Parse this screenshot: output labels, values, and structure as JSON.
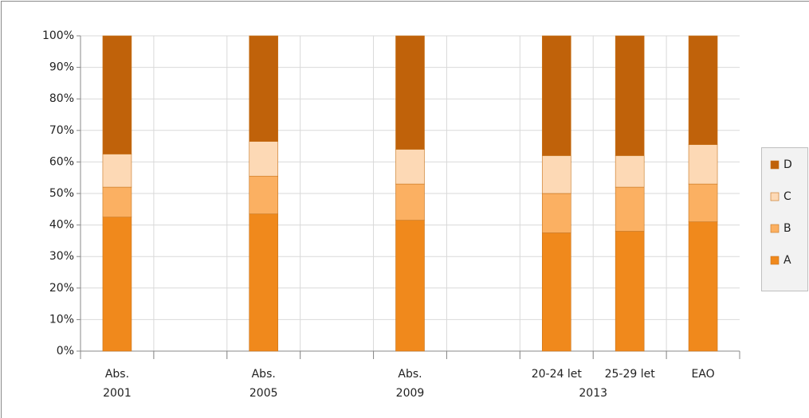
{
  "chart_data": {
    "type": "stacked_bar",
    "categories": [
      "Abs.",
      null,
      "Abs.",
      null,
      "Abs.",
      null,
      "20-24 let",
      "25-29 let",
      "EAO"
    ],
    "category_groups": [
      {
        "name": "2001",
        "from": 0,
        "to": 0
      },
      {
        "name": "2005",
        "from": 2,
        "to": 2
      },
      {
        "name": "2009",
        "from": 4,
        "to": 4
      },
      {
        "name": "2013",
        "from": 6,
        "to": 7
      }
    ],
    "series": [
      {
        "name": "A",
        "color": "#f0891c",
        "values": [
          42.5,
          null,
          43.5,
          null,
          41.5,
          null,
          37.5,
          38,
          41
        ]
      },
      {
        "name": "B",
        "color": "#fbb062",
        "values": [
          9.5,
          null,
          12,
          null,
          11.5,
          null,
          12.5,
          14,
          12
        ]
      },
      {
        "name": "C",
        "color": "#fdd9b5",
        "values": [
          10.5,
          null,
          11,
          null,
          11,
          null,
          12,
          10,
          12.5
        ]
      },
      {
        "name": "D",
        "color": "#c0620a",
        "values": [
          37.5,
          null,
          33.5,
          null,
          36,
          null,
          38,
          38,
          34.5
        ]
      }
    ],
    "ylim": [
      0,
      100
    ],
    "yticks": [
      {
        "value": 0,
        "label": "0%"
      },
      {
        "value": 10,
        "label": "10%"
      },
      {
        "value": 20,
        "label": "20%"
      },
      {
        "value": 30,
        "label": "30%"
      },
      {
        "value": 40,
        "label": "40%"
      },
      {
        "value": 50,
        "label": "50%"
      },
      {
        "value": 60,
        "label": "60%"
      },
      {
        "value": 70,
        "label": "70%"
      },
      {
        "value": 80,
        "label": "80%"
      },
      {
        "value": 90,
        "label": "90%"
      },
      {
        "value": 100,
        "label": "100%"
      }
    ],
    "grid": true,
    "legend": "right"
  }
}
